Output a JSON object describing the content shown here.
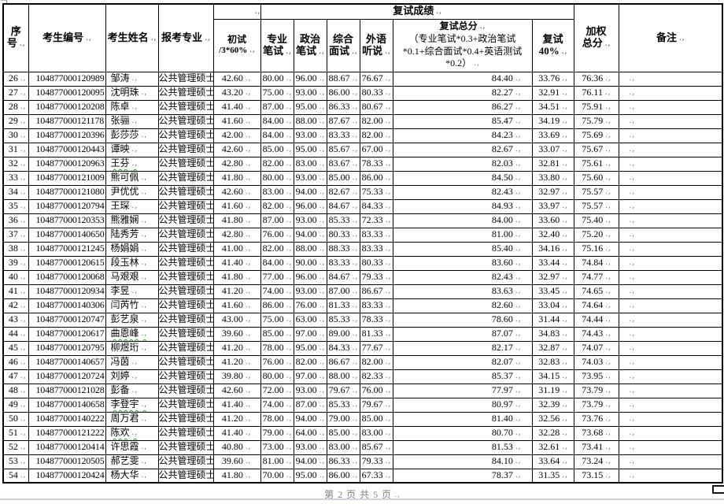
{
  "doc": {
    "footer_page_label": "第 2 页 共 5 页"
  },
  "table": {
    "headers": {
      "no": "序\n号",
      "candidate_id": "考生编号",
      "candidate_name": "考生姓名",
      "major": "报考专业",
      "initial_line1": "初试",
      "initial_line2": "/3*60%",
      "retest_group": "复试成绩",
      "written_major": "专业\n笔试",
      "written_politics": "政治\n笔试",
      "interview": "综合\n面试",
      "foreign_listening": "外语\n听说",
      "retest_total_title": "复试总分",
      "retest_total_formula": "（专业笔试*0.3+政治笔试*0.1+综合面试*0.4+英语测试*0.2）",
      "retest_40": "复试\n40%",
      "weighted_total": "加权\n总分",
      "remark": "备注"
    },
    "row_keys": [
      "no",
      "id",
      "name",
      "major",
      "chushi",
      "zhuanye",
      "zhengzhi",
      "zonghe",
      "waiyu",
      "zongfen",
      "f40",
      "jiaquan",
      "remark"
    ],
    "rows": [
      {
        "no": "26",
        "id": "104877000120989",
        "name": "邹涛",
        "major": "公共管理硕士",
        "chushi": "42.60",
        "zhuanye": "80.00",
        "zhengzhi": "96.00",
        "zonghe": "88.67",
        "waiyu": "76.67",
        "zongfen": "84.40",
        "f40": "33.76",
        "jiaquan": "76.36",
        "remark": ""
      },
      {
        "no": "27",
        "id": "104877000120095",
        "name": "沈明珠",
        "major": "公共管理硕士",
        "chushi": "43.20",
        "zhuanye": "75.00",
        "zhengzhi": "93.00",
        "zonghe": "86.00",
        "waiyu": "80.33",
        "zongfen": "82.27",
        "f40": "32.91",
        "jiaquan": "76.11",
        "remark": ""
      },
      {
        "no": "28",
        "id": "104877000120208",
        "name": "陈卓",
        "major": "公共管理硕士",
        "chushi": "41.40",
        "zhuanye": "87.00",
        "zhengzhi": "95.00",
        "zonghe": "86.33",
        "waiyu": "80.67",
        "zongfen": "86.27",
        "f40": "34.51",
        "jiaquan": "75.91",
        "remark": ""
      },
      {
        "no": "29",
        "id": "104877000121178",
        "name": "张骊",
        "major": "公共管理硕士",
        "chushi": "41.60",
        "zhuanye": "84.00",
        "zhengzhi": "88.00",
        "zonghe": "87.67",
        "waiyu": "82.00",
        "zongfen": "85.47",
        "f40": "34.19",
        "jiaquan": "75.79",
        "remark": ""
      },
      {
        "no": "30",
        "id": "104877000120396",
        "name": "彭莎莎",
        "major": "公共管理硕士",
        "chushi": "42.00",
        "zhuanye": "84.00",
        "zhengzhi": "93.00",
        "zonghe": "83.33",
        "waiyu": "82.00",
        "zongfen": "84.23",
        "f40": "33.69",
        "jiaquan": "75.69",
        "remark": ""
      },
      {
        "no": "31",
        "id": "104877000120443",
        "name": "谭映",
        "major": "公共管理硕士",
        "chushi": "42.60",
        "zhuanye": "85.00",
        "zhengzhi": "95.00",
        "zonghe": "85.67",
        "waiyu": "67.00",
        "zongfen": "82.67",
        "f40": "33.07",
        "jiaquan": "75.67",
        "remark": ""
      },
      {
        "no": "32",
        "id": "104877000120963",
        "name": "王芬",
        "major": "公共管理硕士",
        "chushi": "42.80",
        "zhuanye": "82.00",
        "zhengzhi": "83.00",
        "zonghe": "83.67",
        "waiyu": "78.33",
        "zongfen": "82.03",
        "f40": "32.81",
        "jiaquan": "75.61",
        "remark": "",
        "spell": true
      },
      {
        "no": "33",
        "id": "104877000121009",
        "name": "熊可佩",
        "major": "公共管理硕士",
        "chushi": "41.80",
        "zhuanye": "80.00",
        "zhengzhi": "93.00",
        "zonghe": "85.00",
        "waiyu": "86.00",
        "zongfen": "84.50",
        "f40": "33.80",
        "jiaquan": "75.60",
        "remark": ""
      },
      {
        "no": "34",
        "id": "104877000121080",
        "name": "尹优优",
        "major": "公共管理硕士",
        "chushi": "42.60",
        "zhuanye": "83.00",
        "zhengzhi": "94.00",
        "zonghe": "82.67",
        "waiyu": "75.33",
        "zongfen": "82.43",
        "f40": "32.97",
        "jiaquan": "75.57",
        "remark": ""
      },
      {
        "no": "35",
        "id": "104877000120794",
        "name": "王琛",
        "major": "公共管理硕士",
        "chushi": "41.60",
        "zhuanye": "82.00",
        "zhengzhi": "96.00",
        "zonghe": "84.67",
        "waiyu": "84.33",
        "zongfen": "84.93",
        "f40": "33.97",
        "jiaquan": "75.57",
        "remark": ""
      },
      {
        "no": "36",
        "id": "104877000120353",
        "name": "熊雅娴",
        "major": "公共管理硕士",
        "chushi": "41.80",
        "zhuanye": "87.00",
        "zhengzhi": "93.00",
        "zonghe": "85.33",
        "waiyu": "72.33",
        "zongfen": "84.00",
        "f40": "33.60",
        "jiaquan": "75.40",
        "remark": ""
      },
      {
        "no": "37",
        "id": "104877000140650",
        "name": "陆秀芳",
        "major": "公共管理硕士",
        "chushi": "42.80",
        "zhuanye": "76.00",
        "zhengzhi": "94.00",
        "zonghe": "80.33",
        "waiyu": "83.33",
        "zongfen": "81.00",
        "f40": "32.40",
        "jiaquan": "75.20",
        "remark": ""
      },
      {
        "no": "38",
        "id": "104877000121245",
        "name": "杨娟娟",
        "major": "公共管理硕士",
        "chushi": "41.00",
        "zhuanye": "82.00",
        "zhengzhi": "88.00",
        "zonghe": "88.33",
        "waiyu": "83.33",
        "zongfen": "85.40",
        "f40": "34.16",
        "jiaquan": "75.16",
        "remark": ""
      },
      {
        "no": "39",
        "id": "104877000120615",
        "name": "段玉林",
        "major": "公共管理硕士",
        "chushi": "41.40",
        "zhuanye": "84.00",
        "zhengzhi": "90.00",
        "zonghe": "83.33",
        "waiyu": "80.33",
        "zongfen": "83.60",
        "f40": "33.44",
        "jiaquan": "74.84",
        "remark": ""
      },
      {
        "no": "40",
        "id": "104877000120068",
        "name": "马艰艰",
        "major": "公共管理硕士",
        "chushi": "41.80",
        "zhuanye": "77.00",
        "zhengzhi": "96.00",
        "zonghe": "84.67",
        "waiyu": "79.33",
        "zongfen": "82.43",
        "f40": "32.97",
        "jiaquan": "74.77",
        "remark": ""
      },
      {
        "no": "41",
        "id": "104877000120934",
        "name": "李昱",
        "major": "公共管理硕士",
        "chushi": "41.20",
        "zhuanye": "74.00",
        "zhengzhi": "93.00",
        "zonghe": "87.00",
        "waiyu": "86.67",
        "zongfen": "83.63",
        "f40": "33.45",
        "jiaquan": "74.65",
        "remark": ""
      },
      {
        "no": "42",
        "id": "104877000140306",
        "name": "闫芮竹",
        "major": "公共管理硕士",
        "chushi": "41.60",
        "zhuanye": "86.00",
        "zhengzhi": "76.00",
        "zonghe": "81.33",
        "waiyu": "83.33",
        "zongfen": "82.60",
        "f40": "33.04",
        "jiaquan": "74.64",
        "remark": ""
      },
      {
        "no": "43",
        "id": "104877000120747",
        "name": "彭艺泉",
        "major": "公共管理硕士",
        "chushi": "43.00",
        "zhuanye": "75.00",
        "zhengzhi": "63.00",
        "zonghe": "85.33",
        "waiyu": "78.33",
        "zongfen": "78.60",
        "f40": "31.44",
        "jiaquan": "74.44",
        "remark": ""
      },
      {
        "no": "44",
        "id": "104877000120617",
        "name": "曲恩峰",
        "major": "公共管理硕士",
        "chushi": "39.60",
        "zhuanye": "85.00",
        "zhengzhi": "97.00",
        "zonghe": "89.00",
        "waiyu": "81.33",
        "zongfen": "87.07",
        "f40": "34.83",
        "jiaquan": "74.43",
        "remark": "",
        "spell": true
      },
      {
        "no": "45",
        "id": "104877000120795",
        "name": "柳煜珩",
        "major": "公共管理硕士",
        "chushi": "41.20",
        "zhuanye": "78.00",
        "zhengzhi": "95.00",
        "zonghe": "84.33",
        "waiyu": "77.67",
        "zongfen": "82.17",
        "f40": "32.87",
        "jiaquan": "74.07",
        "remark": ""
      },
      {
        "no": "46",
        "id": "104877000140657",
        "name": "冯茵",
        "major": "公共管理硕士",
        "chushi": "41.20",
        "zhuanye": "76.00",
        "zhengzhi": "82.00",
        "zonghe": "86.67",
        "waiyu": "82.00",
        "zongfen": "82.07",
        "f40": "32.83",
        "jiaquan": "74.03",
        "remark": ""
      },
      {
        "no": "47",
        "id": "104877000120724",
        "name": "刘婷",
        "major": "公共管理硕士",
        "chushi": "39.80",
        "zhuanye": "80.00",
        "zhengzhi": "97.00",
        "zonghe": "88.00",
        "waiyu": "82.33",
        "zongfen": "85.37",
        "f40": "34.15",
        "jiaquan": "73.95",
        "remark": ""
      },
      {
        "no": "48",
        "id": "104877000121028",
        "name": "彭备",
        "major": "公共管理硕士",
        "chushi": "42.60",
        "zhuanye": "72.00",
        "zhengzhi": "93.00",
        "zonghe": "79.67",
        "waiyu": "76.00",
        "zongfen": "77.97",
        "f40": "31.19",
        "jiaquan": "73.79",
        "remark": ""
      },
      {
        "no": "49",
        "id": "104877000140658",
        "name": "李登宇",
        "major": "公共管理硕士",
        "chushi": "41.40",
        "zhuanye": "74.00",
        "zhengzhi": "87.00",
        "zonghe": "85.33",
        "waiyu": "79.67",
        "zongfen": "80.97",
        "f40": "32.39",
        "jiaquan": "73.79",
        "remark": "",
        "spell": true
      },
      {
        "no": "50",
        "id": "104877000140222",
        "name": "周万君",
        "major": "公共管理硕士",
        "chushi": "41.20",
        "zhuanye": "78.00",
        "zhengzhi": "94.00",
        "zonghe": "79.00",
        "waiyu": "85.00",
        "zongfen": "81.40",
        "f40": "32.56",
        "jiaquan": "73.76",
        "remark": ""
      },
      {
        "no": "51",
        "id": "104877000121222",
        "name": "陈欢",
        "major": "公共管理硕士",
        "chushi": "41.40",
        "zhuanye": "79.00",
        "zhengzhi": "64.00",
        "zonghe": "85.00",
        "waiyu": "83.00",
        "zongfen": "80.70",
        "f40": "32.28",
        "jiaquan": "73.68",
        "remark": "",
        "spell": true
      },
      {
        "no": "52",
        "id": "104877000120414",
        "name": "许思霞",
        "major": "公共管理硕士",
        "chushi": "40.80",
        "zhuanye": "73.00",
        "zhengzhi": "93.00",
        "zonghe": "83.00",
        "waiyu": "85.67",
        "zongfen": "81.53",
        "f40": "32.61",
        "jiaquan": "73.41",
        "remark": ""
      },
      {
        "no": "53",
        "id": "104877000120505",
        "name": "郝艺雯",
        "major": "公共管理硕士",
        "chushi": "39.60",
        "zhuanye": "81.00",
        "zhengzhi": "94.00",
        "zonghe": "86.33",
        "waiyu": "79.33",
        "zongfen": "84.10",
        "f40": "33.64",
        "jiaquan": "73.24",
        "remark": ""
      },
      {
        "no": "54",
        "id": "104877000120424",
        "name": "杨大华",
        "major": "公共管理硕士",
        "chushi": "41.80",
        "zhuanye": "70.00",
        "zhengzhi": "95.00",
        "zonghe": "86.00",
        "waiyu": "67.33",
        "zongfen": "78.37",
        "f40": "31.35",
        "jiaquan": "73.15",
        "remark": ""
      }
    ]
  }
}
